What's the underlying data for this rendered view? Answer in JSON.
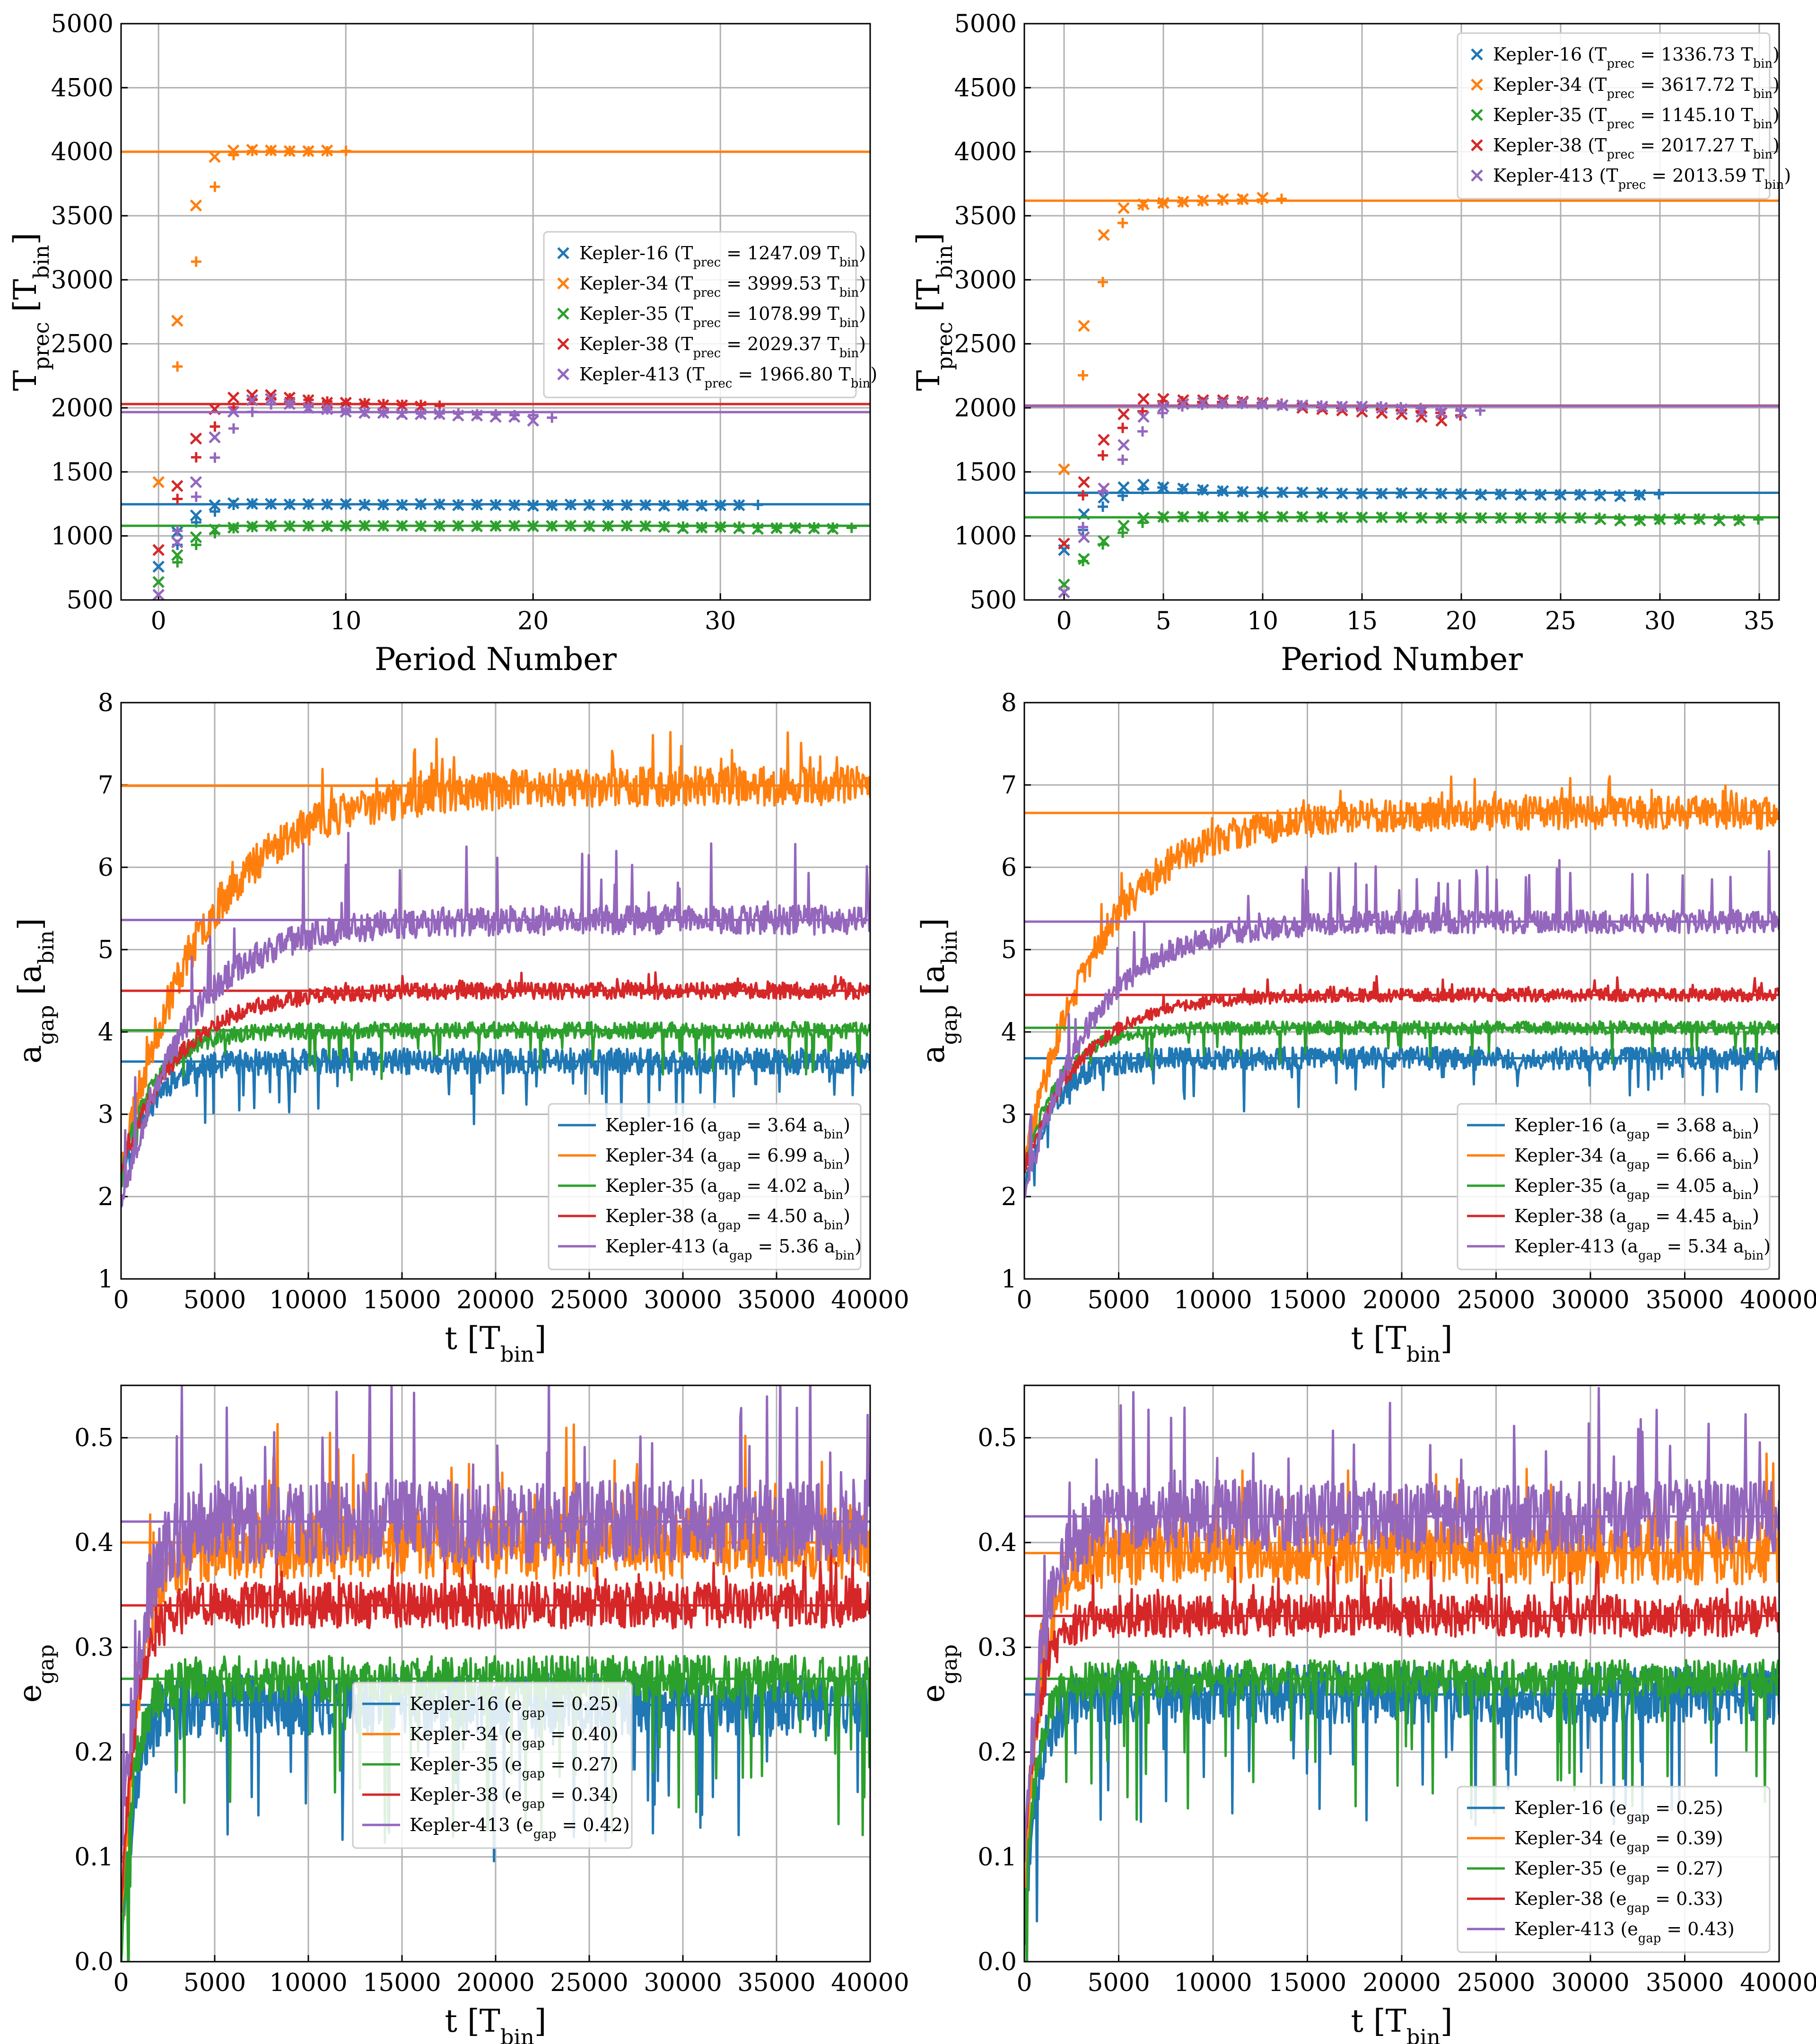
{
  "colors": {
    "Kepler-16": "#1f77b4",
    "Kepler-34": "#ff7f0e",
    "Kepler-35": "#2ca02c",
    "Kepler-38": "#d62728",
    "Kepler-413": "#9467bd",
    "grid": "#b0b0b0"
  },
  "chart_data": [
    {
      "type": "scatter",
      "xlabel": "Period Number",
      "ylabel": "T_prec [T_bin]",
      "xlim": [
        -2,
        38
      ],
      "ylim": [
        500,
        5000
      ],
      "xticks": [
        "0",
        "10",
        "20",
        "30"
      ],
      "yticks": [
        "500",
        "1000",
        "1500",
        "2000",
        "2500",
        "3000",
        "3500",
        "4000",
        "4500",
        "5000"
      ],
      "legend_position": "center-right",
      "series": [
        {
          "name": "Kepler-16",
          "legend": "Kepler-16 (T_prec = 1247.09 T_bin)",
          "mean": 1247.09,
          "values": [
            760,
            1030,
            1160,
            1240,
            1255,
            1250,
            1250,
            1245,
            1250,
            1245,
            1250,
            1240,
            1245,
            1240,
            1250,
            1245,
            1240,
            1245,
            1240,
            1240,
            1235,
            1240,
            1245,
            1240,
            1240,
            1240,
            1240,
            1235,
            1240,
            1235,
            1240,
            1240
          ]
        },
        {
          "name": "Kepler-34",
          "legend": "Kepler-34 (T_prec = 3999.53 T_bin)",
          "mean": 3999.53,
          "values": [
            1420,
            2680,
            3580,
            3960,
            4010,
            4015,
            4010,
            4005,
            4005,
            4010
          ]
        },
        {
          "name": "Kepler-35",
          "legend": "Kepler-35 (T_prec = 1078.99 T_bin)",
          "mean": 1078.99,
          "values": [
            640,
            850,
            990,
            1050,
            1065,
            1075,
            1080,
            1075,
            1080,
            1075,
            1080,
            1080,
            1078,
            1080,
            1075,
            1078,
            1080,
            1075,
            1078,
            1080,
            1075,
            1078,
            1080,
            1075,
            1078,
            1080,
            1075,
            1070,
            1060,
            1065,
            1070,
            1060,
            1055,
            1060,
            1060,
            1058,
            1055
          ]
        },
        {
          "name": "Kepler-38",
          "legend": "Kepler-38 (T_prec = 2029.37 T_bin)",
          "mean": 2029.37,
          "values": [
            890,
            1390,
            1760,
            1990,
            2080,
            2100,
            2100,
            2080,
            2060,
            2040,
            2040,
            2030,
            2020,
            2020,
            2010
          ]
        },
        {
          "name": "Kepler-413",
          "legend": "Kepler-413 (T_prec = 1966.80 T_bin)",
          "mean": 1966.8,
          "values": [
            540,
            950,
            1420,
            1770,
            1970,
            2060,
            2070,
            2030,
            2000,
            1990,
            1970,
            1960,
            1960,
            1950,
            1950,
            1950,
            1940,
            1940,
            1930,
            1930,
            1900
          ]
        }
      ]
    },
    {
      "type": "scatter",
      "xlabel": "Period Number",
      "ylabel": "T_prec [T_bin]",
      "xlim": [
        -2,
        36
      ],
      "ylim": [
        500,
        5000
      ],
      "xticks": [
        "0",
        "5",
        "10",
        "15",
        "20",
        "25",
        "30",
        "35"
      ],
      "yticks": [
        "500",
        "1000",
        "1500",
        "2000",
        "2500",
        "3000",
        "3500",
        "4000",
        "4500",
        "5000"
      ],
      "legend_position": "top-right",
      "series": [
        {
          "name": "Kepler-16",
          "legend": "Kepler-16 (T_prec = 1336.73 T_bin)",
          "mean": 1336.73,
          "values": [
            890,
            1170,
            1300,
            1380,
            1400,
            1380,
            1370,
            1360,
            1350,
            1345,
            1340,
            1340,
            1340,
            1335,
            1330,
            1330,
            1330,
            1335,
            1330,
            1330,
            1325,
            1320,
            1325,
            1320,
            1320,
            1320,
            1320,
            1315,
            1310,
            1320
          ]
        },
        {
          "name": "Kepler-34",
          "legend": "Kepler-34 (T_prec = 3617.72 T_bin)",
          "mean": 3617.72,
          "values": [
            1520,
            2640,
            3350,
            3560,
            3590,
            3600,
            3610,
            3620,
            3630,
            3630,
            3640
          ]
        },
        {
          "name": "Kepler-35",
          "legend": "Kepler-35 (T_prec = 1145.10 T_bin)",
          "mean": 1145.1,
          "values": [
            620,
            820,
            960,
            1080,
            1140,
            1150,
            1150,
            1150,
            1150,
            1150,
            1150,
            1150,
            1150,
            1145,
            1145,
            1145,
            1145,
            1145,
            1140,
            1140,
            1140,
            1140,
            1140,
            1140,
            1140,
            1140,
            1140,
            1130,
            1120,
            1120,
            1130,
            1130,
            1130,
            1120,
            1120
          ]
        },
        {
          "name": "Kepler-38",
          "legend": "Kepler-38 (T_prec = 2017.27 T_bin)",
          "mean": 2017.27,
          "values": [
            940,
            1420,
            1750,
            1950,
            2070,
            2070,
            2060,
            2060,
            2060,
            2050,
            2040,
            2020,
            2000,
            1990,
            1980,
            1970,
            1960,
            1950,
            1930,
            1900
          ]
        },
        {
          "name": "Kepler-413",
          "legend": "Kepler-413 (T_prec = 2013.59 T_bin)",
          "mean": 2013.59,
          "values": [
            560,
            990,
            1370,
            1710,
            1930,
            2010,
            2030,
            2040,
            2040,
            2040,
            2030,
            2020,
            2020,
            2010,
            2010,
            2010,
            2000,
            1990,
            1970,
            1960,
            1960
          ]
        }
      ]
    },
    {
      "type": "line",
      "xlabel": "t [T_bin]",
      "ylabel": "a_gap [a_bin]",
      "xlim": [
        0,
        40000
      ],
      "ylim": [
        1,
        8
      ],
      "xticks": [
        "0",
        "5000",
        "10000",
        "15000",
        "20000",
        "25000",
        "30000",
        "35000",
        "40000"
      ],
      "yticks": [
        "1",
        "2",
        "3",
        "4",
        "5",
        "6",
        "7",
        "8"
      ],
      "legend_position": "lower-right",
      "series": [
        {
          "name": "Kepler-16",
          "legend": "Kepler-16 (a_gap = 3.64 a_bin)",
          "mean": 3.64,
          "start": 2.2,
          "rise": 1500,
          "noise": 0.16,
          "spikes": -0.45,
          "seed": 11
        },
        {
          "name": "Kepler-34",
          "legend": "Kepler-34 (a_gap = 6.99 a_bin)",
          "mean": 6.99,
          "start": 2.4,
          "rise": 4500,
          "noise": 0.24,
          "spikes": 0.35,
          "seed": 23
        },
        {
          "name": "Kepler-35",
          "legend": "Kepler-35 (a_gap = 4.02 a_bin)",
          "mean": 4.02,
          "start": 2.3,
          "rise": 1800,
          "noise": 0.1,
          "spikes": -0.35,
          "seed": 37
        },
        {
          "name": "Kepler-38",
          "legend": "Kepler-38 (a_gap = 4.50 a_bin)",
          "mean": 4.5,
          "start": 2.3,
          "rise": 3000,
          "noise": 0.1,
          "spikes": 0.12,
          "seed": 41
        },
        {
          "name": "Kepler-413",
          "legend": "Kepler-413 (a_gap = 5.36 a_bin)",
          "mean": 5.36,
          "start": 1.9,
          "rise": 3500,
          "noise": 0.18,
          "spikes": 0.7,
          "seed": 53
        }
      ]
    },
    {
      "type": "line",
      "xlabel": "t [T_bin]",
      "ylabel": "a_gap [a_bin]",
      "xlim": [
        0,
        40000
      ],
      "ylim": [
        1,
        8
      ],
      "xticks": [
        "0",
        "5000",
        "10000",
        "15000",
        "20000",
        "25000",
        "30000",
        "35000",
        "40000"
      ],
      "yticks": [
        "1",
        "2",
        "3",
        "4",
        "5",
        "6",
        "7",
        "8"
      ],
      "legend_position": "lower-right",
      "series": [
        {
          "name": "Kepler-16",
          "legend": "Kepler-16 (a_gap = 3.68 a_bin)",
          "mean": 3.68,
          "start": 2.1,
          "rise": 1500,
          "noise": 0.14,
          "spikes": -0.35,
          "seed": 13
        },
        {
          "name": "Kepler-34",
          "legend": "Kepler-34 (a_gap = 6.66 a_bin)",
          "mean": 6.66,
          "start": 2.4,
          "rise": 4000,
          "noise": 0.2,
          "spikes": 0.25,
          "seed": 29
        },
        {
          "name": "Kepler-35",
          "legend": "Kepler-35 (a_gap = 4.05 a_bin)",
          "mean": 4.05,
          "start": 2.3,
          "rise": 1800,
          "noise": 0.08,
          "spikes": -0.3,
          "seed": 31
        },
        {
          "name": "Kepler-38",
          "legend": "Kepler-38 (a_gap = 4.45 a_bin)",
          "mean": 4.45,
          "start": 2.3,
          "rise": 3000,
          "noise": 0.08,
          "spikes": 0.12,
          "seed": 43
        },
        {
          "name": "Kepler-413",
          "legend": "Kepler-413 (a_gap = 5.34 a_bin)",
          "mean": 5.34,
          "start": 2.0,
          "rise": 3500,
          "noise": 0.14,
          "spikes": 0.5,
          "seed": 59
        }
      ]
    },
    {
      "type": "line",
      "xlabel": "t [T_bin]",
      "ylabel": "e_gap",
      "xlim": [
        0,
        40000
      ],
      "ylim": [
        0,
        0.55
      ],
      "xticks": [
        "0",
        "5000",
        "10000",
        "15000",
        "20000",
        "25000",
        "30000",
        "35000",
        "40000"
      ],
      "yticks": [
        "0.0",
        "0.1",
        "0.2",
        "0.3",
        "0.4",
        "0.5"
      ],
      "legend_position": "lower-center",
      "series": [
        {
          "name": "Kepler-16",
          "legend": "Kepler-16 (e_gap = 0.25)",
          "mean": 0.245,
          "start": 0.0,
          "rise": 700,
          "noise": 0.03,
          "spikes": -0.09,
          "seed": 17
        },
        {
          "name": "Kepler-34",
          "legend": "Kepler-34 (e_gap = 0.40)",
          "mean": 0.4,
          "start": 0.0,
          "rise": 900,
          "noise": 0.035,
          "spikes": 0.06,
          "seed": 19
        },
        {
          "name": "Kepler-35",
          "legend": "Kepler-35 (e_gap = 0.27)",
          "mean": 0.27,
          "start": 0.0,
          "rise": 700,
          "noise": 0.022,
          "spikes": -0.1,
          "seed": 47
        },
        {
          "name": "Kepler-38",
          "legend": "Kepler-38 (e_gap = 0.34)",
          "mean": 0.34,
          "start": 0.05,
          "rise": 800,
          "noise": 0.022,
          "spikes": 0.03,
          "seed": 61
        },
        {
          "name": "Kepler-413",
          "legend": "Kepler-413 (e_gap = 0.42)",
          "mean": 0.42,
          "start": 0.1,
          "rise": 1000,
          "noise": 0.04,
          "spikes": 0.08,
          "seed": 67
        }
      ]
    },
    {
      "type": "line",
      "xlabel": "t [T_bin]",
      "ylabel": "e_gap",
      "xlim": [
        0,
        40000
      ],
      "ylim": [
        0,
        0.55
      ],
      "xticks": [
        "0",
        "5000",
        "10000",
        "15000",
        "20000",
        "25000",
        "30000",
        "35000",
        "40000"
      ],
      "yticks": [
        "0.0",
        "0.1",
        "0.2",
        "0.3",
        "0.4",
        "0.5"
      ],
      "legend_position": "lower-right",
      "series": [
        {
          "name": "Kepler-16",
          "legend": "Kepler-16 (e_gap = 0.25)",
          "mean": 0.255,
          "start": 0.02,
          "rise": 700,
          "noise": 0.028,
          "spikes": -0.08,
          "seed": 71
        },
        {
          "name": "Kepler-34",
          "legend": "Kepler-34 (e_gap = 0.39)",
          "mean": 0.39,
          "start": 0.05,
          "rise": 900,
          "noise": 0.03,
          "spikes": 0.05,
          "seed": 73
        },
        {
          "name": "Kepler-35",
          "legend": "Kepler-35 (e_gap = 0.27)",
          "mean": 0.27,
          "start": 0.05,
          "rise": 700,
          "noise": 0.018,
          "spikes": -0.09,
          "seed": 79
        },
        {
          "name": "Kepler-38",
          "legend": "Kepler-38 (e_gap = 0.33)",
          "mean": 0.33,
          "start": 0.1,
          "rise": 800,
          "noise": 0.02,
          "spikes": 0.03,
          "seed": 83
        },
        {
          "name": "Kepler-413",
          "legend": "Kepler-413 (e_gap = 0.43)",
          "mean": 0.425,
          "start": 0.1,
          "rise": 1000,
          "noise": 0.035,
          "spikes": 0.07,
          "seed": 89
        }
      ]
    }
  ]
}
